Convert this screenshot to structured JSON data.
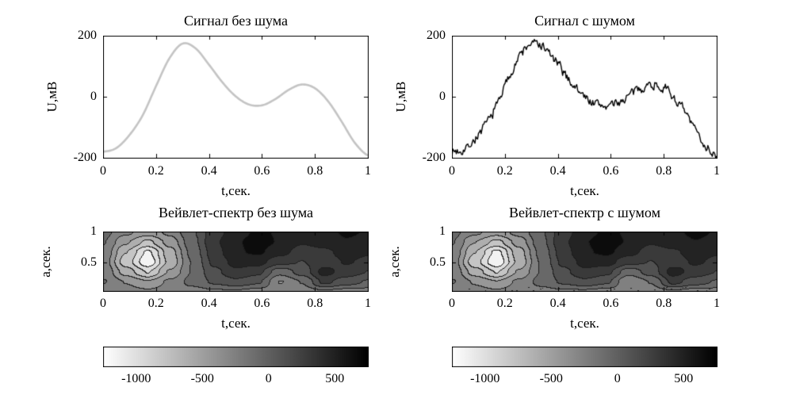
{
  "figure": {
    "background": "#ffffff",
    "frame_color": "#000000"
  },
  "chart_data": [
    {
      "id": "signal-clean",
      "type": "line",
      "title": "Сигнал без шума",
      "xlabel": "t,сек.",
      "ylabel": "U,мВ",
      "xlim": [
        0,
        1
      ],
      "ylim": [
        -200,
        200
      ],
      "xticks": [
        0,
        0.2,
        0.4,
        0.6,
        0.8,
        1
      ],
      "xtick_labels": [
        "0",
        "0.2",
        "0.4",
        "0.6",
        "0.8",
        "1"
      ],
      "yticks": [
        -200,
        0,
        200
      ],
      "ytick_labels": [
        "-200",
        "0",
        "200"
      ],
      "line_color": "#c4c4c4",
      "line_width": 2.6,
      "x": [
        0,
        0.05,
        0.1,
        0.15,
        0.2,
        0.25,
        0.3,
        0.35,
        0.4,
        0.45,
        0.5,
        0.55,
        0.6,
        0.65,
        0.7,
        0.75,
        0.8,
        0.85,
        0.9,
        0.95,
        1
      ],
      "y": [
        -180,
        -168,
        -125,
        -60,
        35,
        125,
        174,
        158,
        105,
        48,
        2,
        -25,
        -28,
        -8,
        22,
        40,
        28,
        -15,
        -80,
        -150,
        -192
      ]
    },
    {
      "id": "signal-noisy",
      "type": "line",
      "title": "Сигнал с шумом",
      "xlabel": "t,сек.",
      "ylabel": "U,мВ",
      "xlim": [
        0,
        1
      ],
      "ylim": [
        -200,
        200
      ],
      "xticks": [
        0,
        0.2,
        0.4,
        0.6,
        0.8,
        1
      ],
      "xtick_labels": [
        "0",
        "0.2",
        "0.4",
        "0.6",
        "0.8",
        "1"
      ],
      "yticks": [
        -200,
        0,
        200
      ],
      "ytick_labels": [
        "-200",
        "0",
        "200"
      ],
      "line_color": "#000000",
      "line_width": 1.4,
      "noise_amplitude": 13,
      "noise_seed": 7,
      "x": [
        0,
        0.05,
        0.1,
        0.15,
        0.2,
        0.25,
        0.3,
        0.35,
        0.4,
        0.45,
        0.5,
        0.55,
        0.6,
        0.65,
        0.7,
        0.75,
        0.8,
        0.85,
        0.9,
        0.95,
        1
      ],
      "y": [
        -180,
        -168,
        -125,
        -60,
        35,
        125,
        174,
        158,
        105,
        48,
        2,
        -25,
        -28,
        -8,
        22,
        40,
        28,
        -15,
        -80,
        -150,
        -192
      ]
    },
    {
      "id": "wavelet-clean",
      "type": "contourf",
      "title": "Вейвлет-спектр без шума",
      "xlabel": "t,сек.",
      "ylabel": "а,сек.",
      "xlim": [
        0,
        1
      ],
      "alim": [
        0.05,
        1
      ],
      "xticks": [
        0,
        0.2,
        0.4,
        0.6,
        0.8,
        1
      ],
      "xtick_labels": [
        "0",
        "0.2",
        "0.4",
        "0.6",
        "0.8",
        "1"
      ],
      "yticks": [
        0.5,
        1
      ],
      "ytick_labels": [
        "0.5",
        "1"
      ],
      "vmin": -1250,
      "vmax": 750,
      "levels": 11,
      "grid": [
        [
          -100,
          -300,
          -450,
          -300,
          0,
          300,
          500,
          600,
          550,
          450,
          500,
          600,
          550
        ],
        [
          -150,
          -500,
          -750,
          -450,
          -50,
          350,
          550,
          650,
          550,
          400,
          450,
          550,
          500
        ],
        [
          -200,
          -700,
          -1100,
          -600,
          -100,
          300,
          550,
          600,
          450,
          300,
          350,
          450,
          400
        ],
        [
          -250,
          -800,
          -1200,
          -650,
          -150,
          250,
          450,
          450,
          250,
          200,
          300,
          400,
          350
        ],
        [
          -200,
          -600,
          -900,
          -500,
          -150,
          150,
          350,
          250,
          -100,
          100,
          450,
          300,
          200
        ],
        [
          -150,
          -350,
          -500,
          -300,
          -100,
          50,
          150,
          50,
          -350,
          -150,
          250,
          100,
          0
        ],
        [
          -250,
          -250,
          -300,
          -250,
          -250,
          -200,
          -200,
          -250,
          -250,
          -250,
          -200,
          -250,
          -250
        ]
      ],
      "colorbar": {
        "ticks": [
          -1000,
          -500,
          0,
          500
        ],
        "labels": [
          "-1000",
          "-500",
          "0",
          "500"
        ]
      }
    },
    {
      "id": "wavelet-noisy",
      "type": "contourf",
      "title": "Вейвлет-спектр с шумом",
      "xlabel": "t,сек.",
      "ylabel": "а,сек.",
      "xlim": [
        0,
        1
      ],
      "alim": [
        0.05,
        1
      ],
      "xticks": [
        0,
        0.2,
        0.4,
        0.6,
        0.8,
        1
      ],
      "xtick_labels": [
        "0",
        "0.2",
        "0.4",
        "0.6",
        "0.8",
        "1"
      ],
      "yticks": [
        0.5,
        1
      ],
      "ytick_labels": [
        "0.5",
        "1"
      ],
      "vmin": -1250,
      "vmax": 750,
      "levels": 11,
      "bottom_speckle": true,
      "speckle_seed": 11,
      "grid": [
        [
          -100,
          -300,
          -450,
          -280,
          0,
          300,
          520,
          600,
          550,
          450,
          520,
          620,
          550
        ],
        [
          -150,
          -520,
          -760,
          -450,
          -40,
          350,
          560,
          660,
          550,
          400,
          460,
          560,
          500
        ],
        [
          -200,
          -700,
          -1120,
          -600,
          -100,
          300,
          550,
          610,
          450,
          300,
          360,
          460,
          400
        ],
        [
          -250,
          -820,
          -1210,
          -650,
          -140,
          250,
          450,
          460,
          250,
          200,
          300,
          410,
          350
        ],
        [
          -200,
          -610,
          -900,
          -500,
          -150,
          150,
          350,
          250,
          -90,
          110,
          460,
          300,
          200
        ],
        [
          -150,
          -360,
          -510,
          -300,
          -100,
          50,
          150,
          50,
          -340,
          -150,
          260,
          100,
          0
        ],
        [
          -250,
          -260,
          -300,
          -250,
          -240,
          -200,
          -210,
          -250,
          -260,
          -250,
          -200,
          -260,
          -250
        ]
      ],
      "colorbar": {
        "ticks": [
          -1000,
          -500,
          0,
          500
        ],
        "labels": [
          "-1000",
          "-500",
          "0",
          "500"
        ]
      }
    }
  ]
}
